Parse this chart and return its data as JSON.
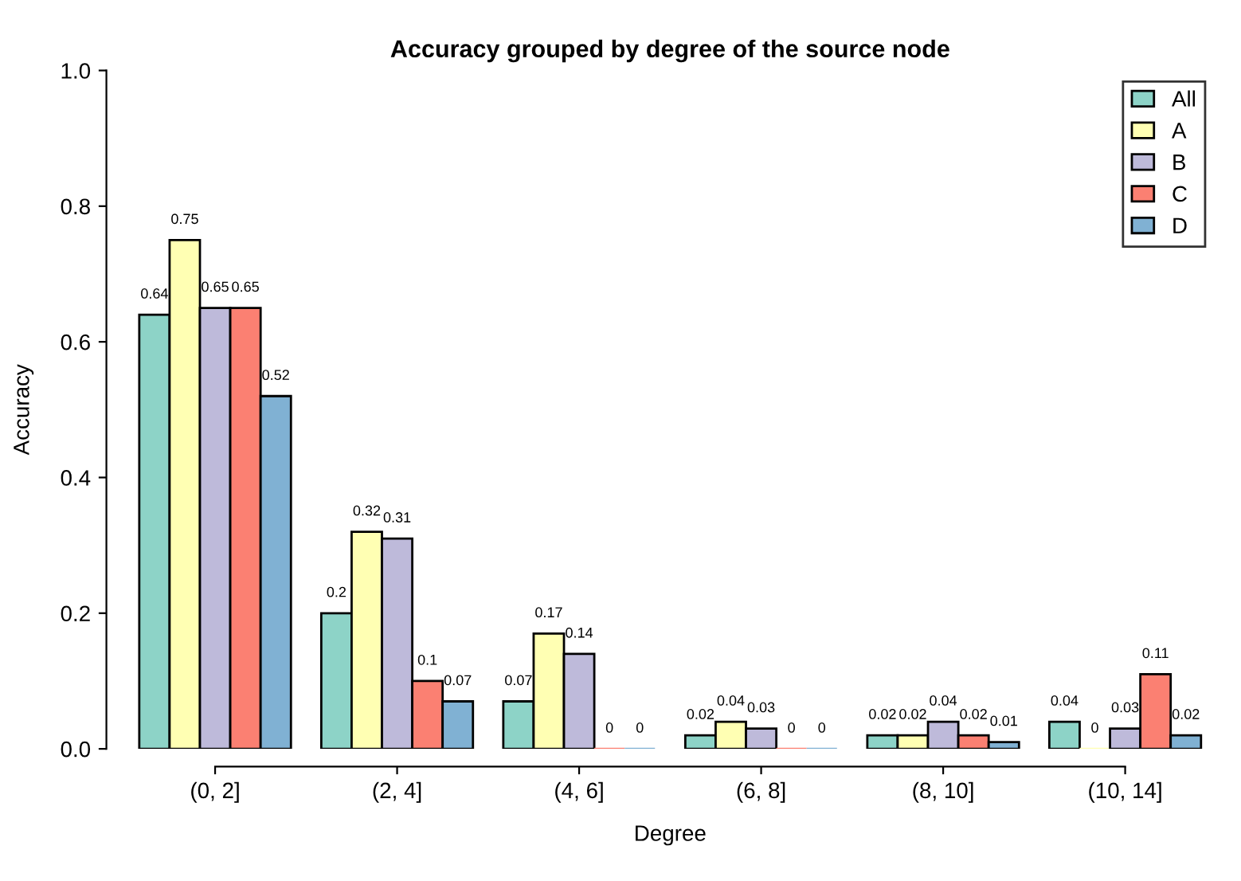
{
  "chart_data": {
    "type": "bar",
    "title": "Accuracy grouped by degree of the source node",
    "xlabel": "Degree",
    "ylabel": "Accuracy",
    "categories": [
      "(0, 2]",
      "(2, 4]",
      "(4, 6]",
      "(6, 8]",
      "(8, 10]",
      "(10, 14]"
    ],
    "series": [
      {
        "name": "All",
        "color": "#8dd3c7",
        "values": [
          0.64,
          0.2,
          0.07,
          0.02,
          0.02,
          0.04
        ]
      },
      {
        "name": "A",
        "color": "#ffffb3",
        "values": [
          0.75,
          0.32,
          0.17,
          0.04,
          0.02,
          0
        ]
      },
      {
        "name": "B",
        "color": "#bebada",
        "values": [
          0.65,
          0.31,
          0.14,
          0.03,
          0.04,
          0.03
        ]
      },
      {
        "name": "C",
        "color": "#fb8072",
        "values": [
          0.65,
          0.1,
          0,
          0,
          0.02,
          0.11
        ]
      },
      {
        "name": "D",
        "color": "#80b1d3",
        "values": [
          0.52,
          0.07,
          0,
          0,
          0.01,
          0.02
        ]
      }
    ],
    "ylim": [
      0,
      1
    ],
    "yticks": [
      {
        "value": 0,
        "label": "0.0"
      },
      0.2,
      0.4,
      0.6,
      0.8,
      {
        "value": 1,
        "label": "1.0"
      }
    ],
    "data_labels": true,
    "legend": "top right",
    "grid": false
  }
}
